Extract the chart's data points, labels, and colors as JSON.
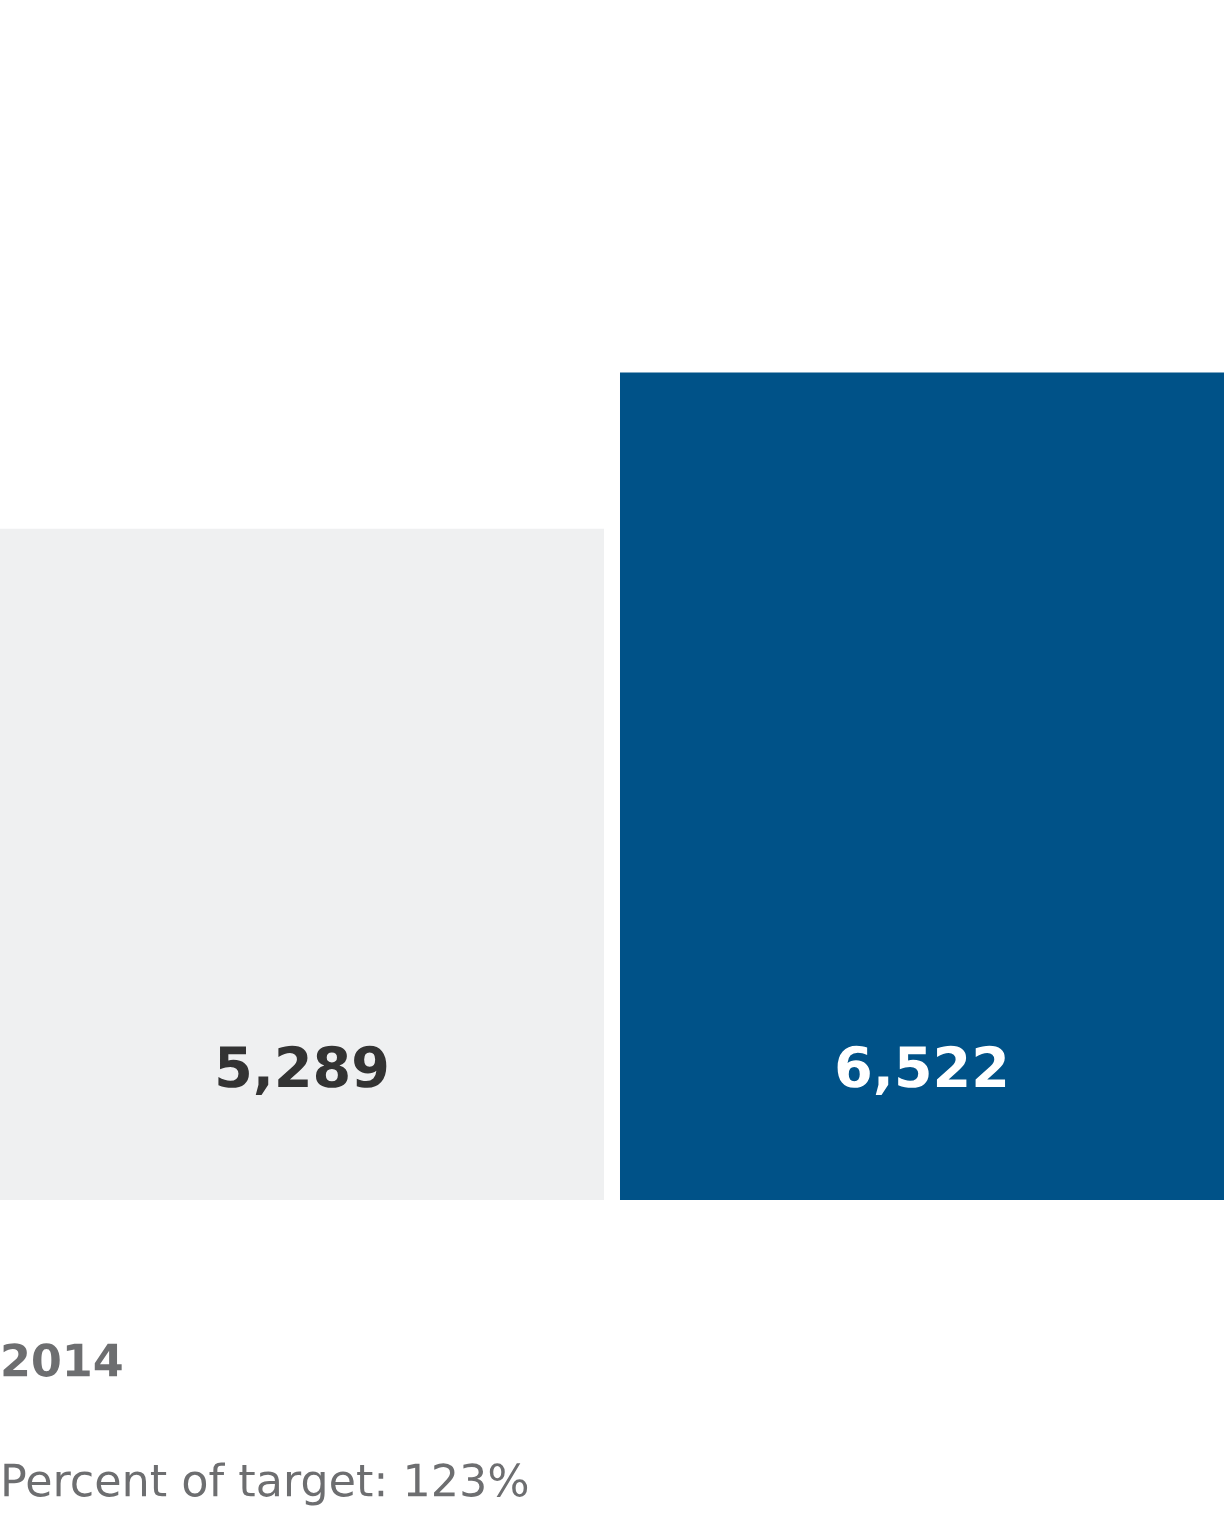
{
  "chart_data": {
    "type": "bar",
    "categories": [
      null,
      null
    ],
    "values": [
      5289,
      6522
    ],
    "colors": [
      "#eff0f1",
      "#005288"
    ],
    "value_labels": [
      "5,289",
      "6,522"
    ],
    "xlabel": "2014",
    "annotations": [
      "Percent of target: 123%"
    ]
  }
}
